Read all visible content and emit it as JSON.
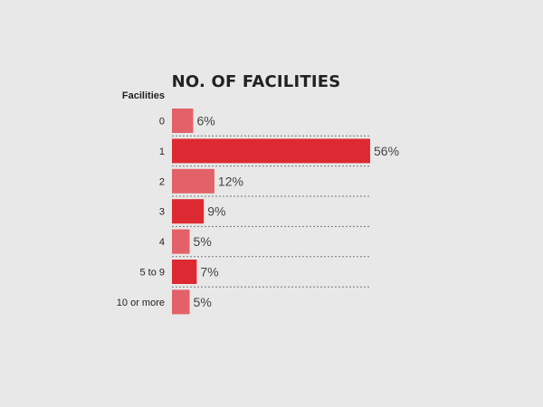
{
  "chart_data": {
    "type": "bar",
    "orientation": "horizontal",
    "title": "NO. OF FACILITIES",
    "ylabel": "Facilities",
    "xlabel": "",
    "categories": [
      "0",
      "1",
      "2",
      "3",
      "4",
      "5 to 9",
      "10 or more"
    ],
    "values": [
      6,
      56,
      12,
      9,
      5,
      7,
      5
    ],
    "value_labels": [
      "6%",
      "56%",
      "12%",
      "9%",
      "5%",
      "7%",
      "5%"
    ],
    "unit": "%",
    "xlim": [
      0,
      56
    ],
    "grid": false,
    "legend": "none",
    "colors": {
      "bar_dark": "#dd2a32",
      "bar_light": "#e36168",
      "background": "#e8e8e8"
    },
    "bar_shades": [
      "light",
      "dark",
      "light",
      "dark",
      "light",
      "dark",
      "light"
    ]
  }
}
